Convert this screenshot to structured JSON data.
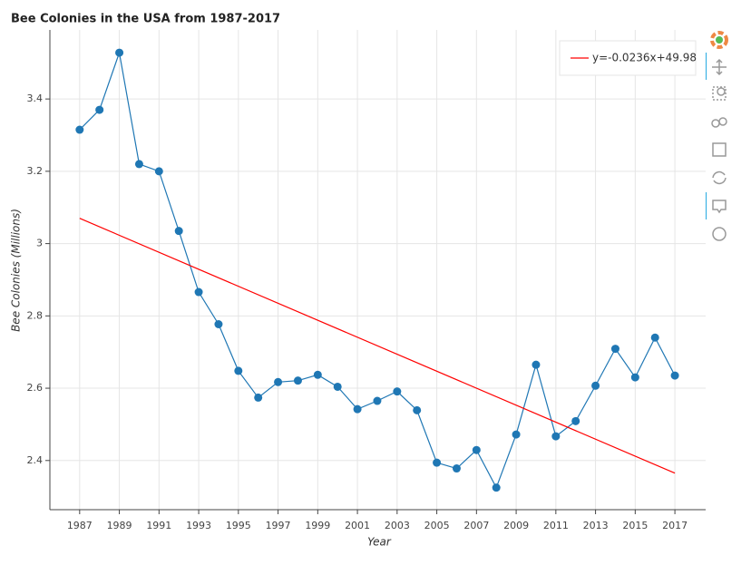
{
  "chart_data": {
    "type": "line",
    "title": "Bee Colonies in the USA from 1987-2017",
    "x_label": "Year",
    "y_label": "Bee Colonies (Millions)",
    "x": [
      1987,
      1988,
      1989,
      1990,
      1991,
      1992,
      1993,
      1994,
      1995,
      1996,
      1997,
      1998,
      1999,
      2000,
      2001,
      2002,
      2003,
      2004,
      2005,
      2006,
      2007,
      2008,
      2009,
      2010,
      2011,
      2012,
      2013,
      2014,
      2015,
      2016,
      2017
    ],
    "series": [
      {
        "color": "#1f77b4",
        "markers": true,
        "values": [
          3.315,
          3.37,
          3.528,
          3.22,
          3.2,
          3.035,
          2.866,
          2.777,
          2.648,
          2.574,
          2.617,
          2.621,
          2.637,
          2.604,
          2.542,
          2.565,
          2.591,
          2.539,
          2.394,
          2.378,
          2.429,
          2.325,
          2.472,
          2.665,
          2.467,
          2.509,
          2.607,
          2.709,
          2.63,
          2.74,
          2.635
        ]
      },
      {
        "name": "y=-0.0236x+49.98",
        "color": "#ff0000",
        "markers": false,
        "x": [
          1987,
          2017
        ],
        "values": [
          3.07,
          2.365
        ]
      }
    ],
    "xlim": [
      1985.5,
      2018.55
    ],
    "ylim": [
      2.264,
      3.591
    ],
    "xticks": [
      1987,
      1989,
      1991,
      1993,
      1995,
      1997,
      1999,
      2001,
      2003,
      2005,
      2007,
      2009,
      2011,
      2013,
      2015,
      2017
    ],
    "yticks": [
      2.4,
      2.6,
      2.8,
      3,
      3.2,
      3.4
    ],
    "grid": true,
    "legend": "top-right"
  }
}
